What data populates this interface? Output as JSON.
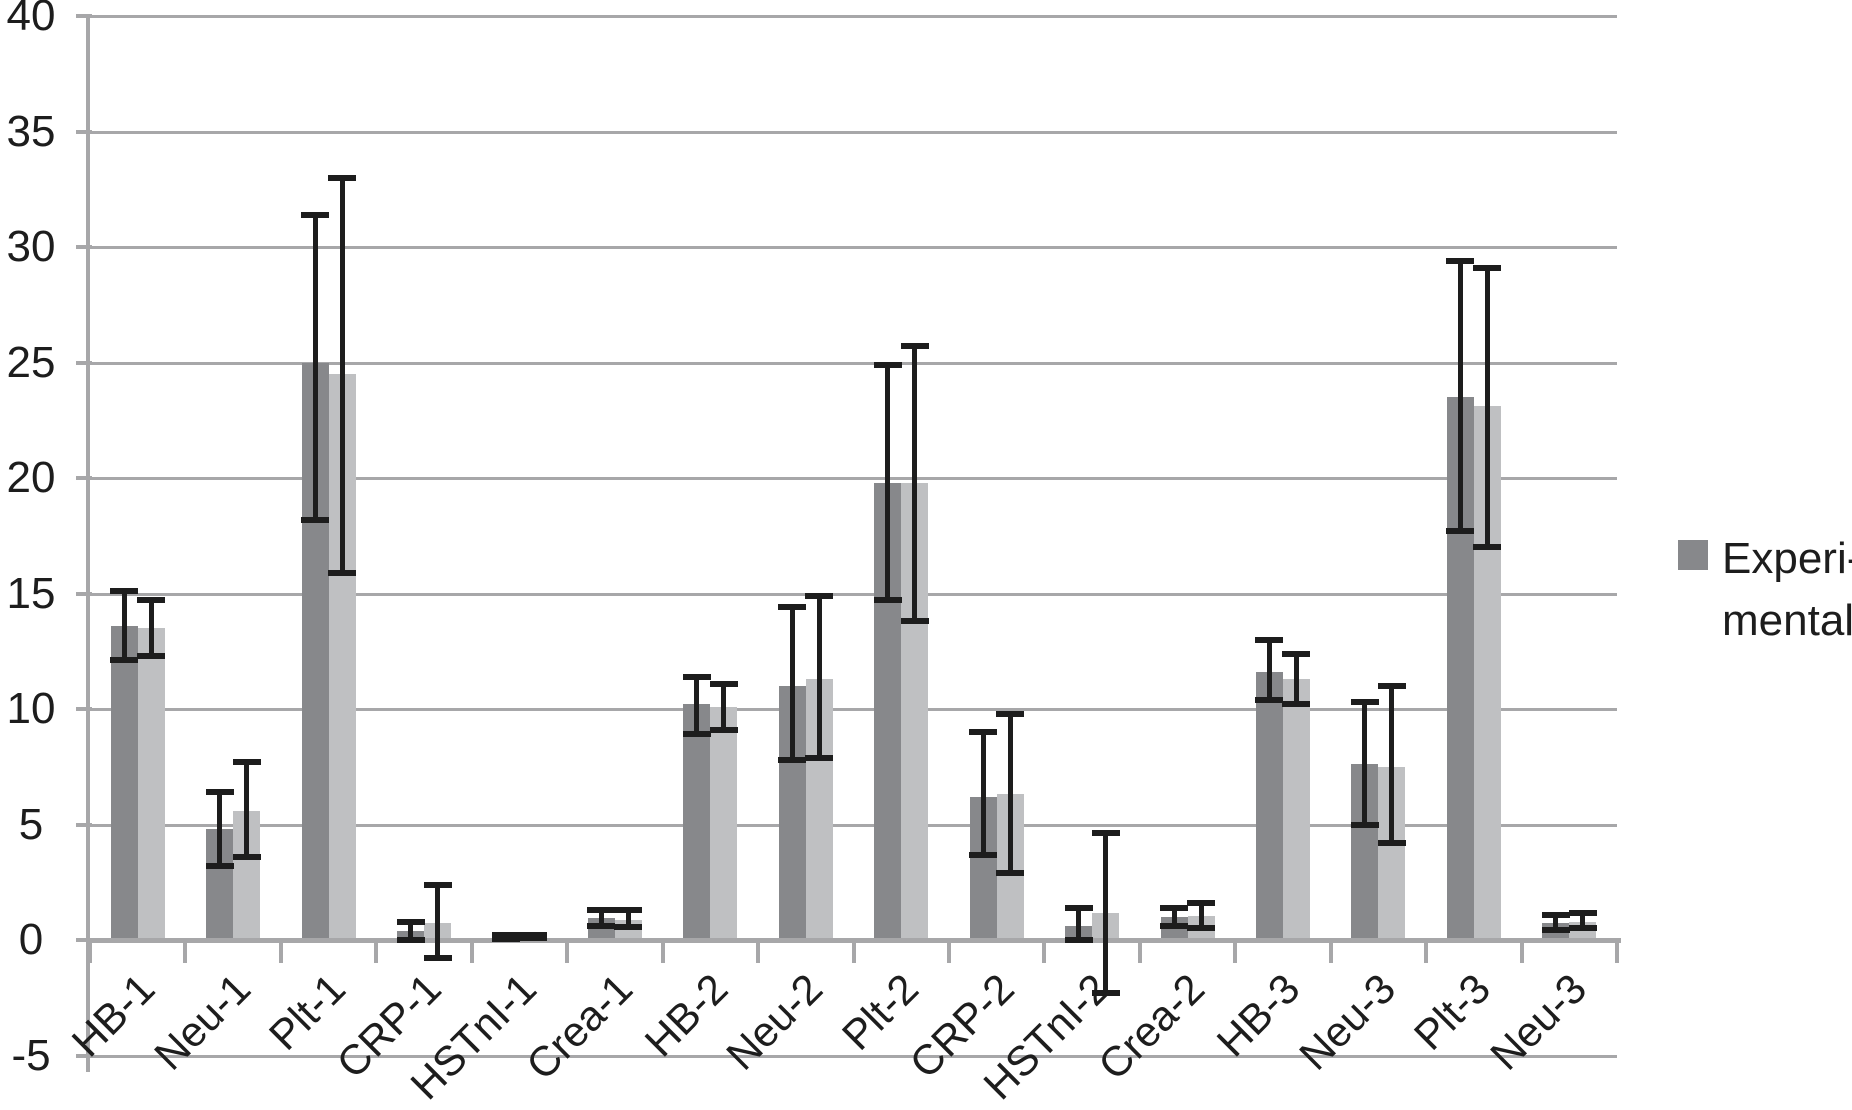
{
  "legend": {
    "label": "Experimental",
    "lines": [
      "Experi-",
      "mental"
    ],
    "swatch_color": "#87888b"
  },
  "colors": {
    "series1_bar": "#87888b",
    "series2_bar": "#bfc0c2",
    "gridline": "#a7a7a9",
    "axis": "#a7a7a9",
    "error_bar": "#1d1d1d",
    "text": "#1d1d1d",
    "background": "#ffffff"
  },
  "chart_data": {
    "type": "bar",
    "title": "",
    "xlabel": "",
    "ylabel": "",
    "ylim": [
      -5,
      40
    ],
    "yticks": [
      40,
      35,
      30,
      25,
      20,
      15,
      10,
      5,
      0,
      -5
    ],
    "grid": true,
    "legend_position": "right",
    "error_bars": true,
    "categories": [
      "HB-1",
      "Neu-1",
      "Plt-1",
      "CRP-1",
      "HSTnI-1",
      "Crea-1",
      "HB-2",
      "Neu-2",
      "Plt-2",
      "CRP-2",
      "HSTnI-2",
      "Crea-2",
      "HB-3",
      "Neu-3",
      "Plt-3",
      "Neu-3"
    ],
    "series": [
      {
        "name": "Experimental",
        "color": "#87888b",
        "values": [
          13.6,
          4.8,
          25.0,
          0.4,
          0.12,
          0.95,
          10.2,
          11.0,
          19.8,
          6.2,
          0.6,
          1.0,
          11.6,
          7.6,
          23.5,
          0.75
        ],
        "error_low": [
          12.1,
          3.2,
          18.2,
          0.0,
          0.05,
          0.6,
          8.9,
          7.8,
          14.7,
          3.7,
          0.0,
          0.6,
          10.4,
          5.0,
          17.7,
          0.45
        ],
        "error_high": [
          15.1,
          6.4,
          31.4,
          0.8,
          0.2,
          1.3,
          11.4,
          14.4,
          24.9,
          9.0,
          1.4,
          1.4,
          13.0,
          10.3,
          29.4,
          1.1
        ]
      },
      {
        "name": "",
        "color": "#bfc0c2",
        "values": [
          13.5,
          5.6,
          24.5,
          0.75,
          0.15,
          0.85,
          10.1,
          11.3,
          19.8,
          6.3,
          1.15,
          1.05,
          11.3,
          7.5,
          23.1,
          0.78
        ],
        "error_low": [
          12.3,
          3.6,
          15.9,
          -0.8,
          0.08,
          0.55,
          9.1,
          7.9,
          13.8,
          2.9,
          -2.3,
          0.5,
          10.2,
          4.2,
          17.0,
          0.5
        ],
        "error_high": [
          14.7,
          7.7,
          33.0,
          2.4,
          0.2,
          1.3,
          11.1,
          14.9,
          25.7,
          9.8,
          4.65,
          1.6,
          12.4,
          11.0,
          29.1,
          1.15
        ]
      }
    ]
  }
}
